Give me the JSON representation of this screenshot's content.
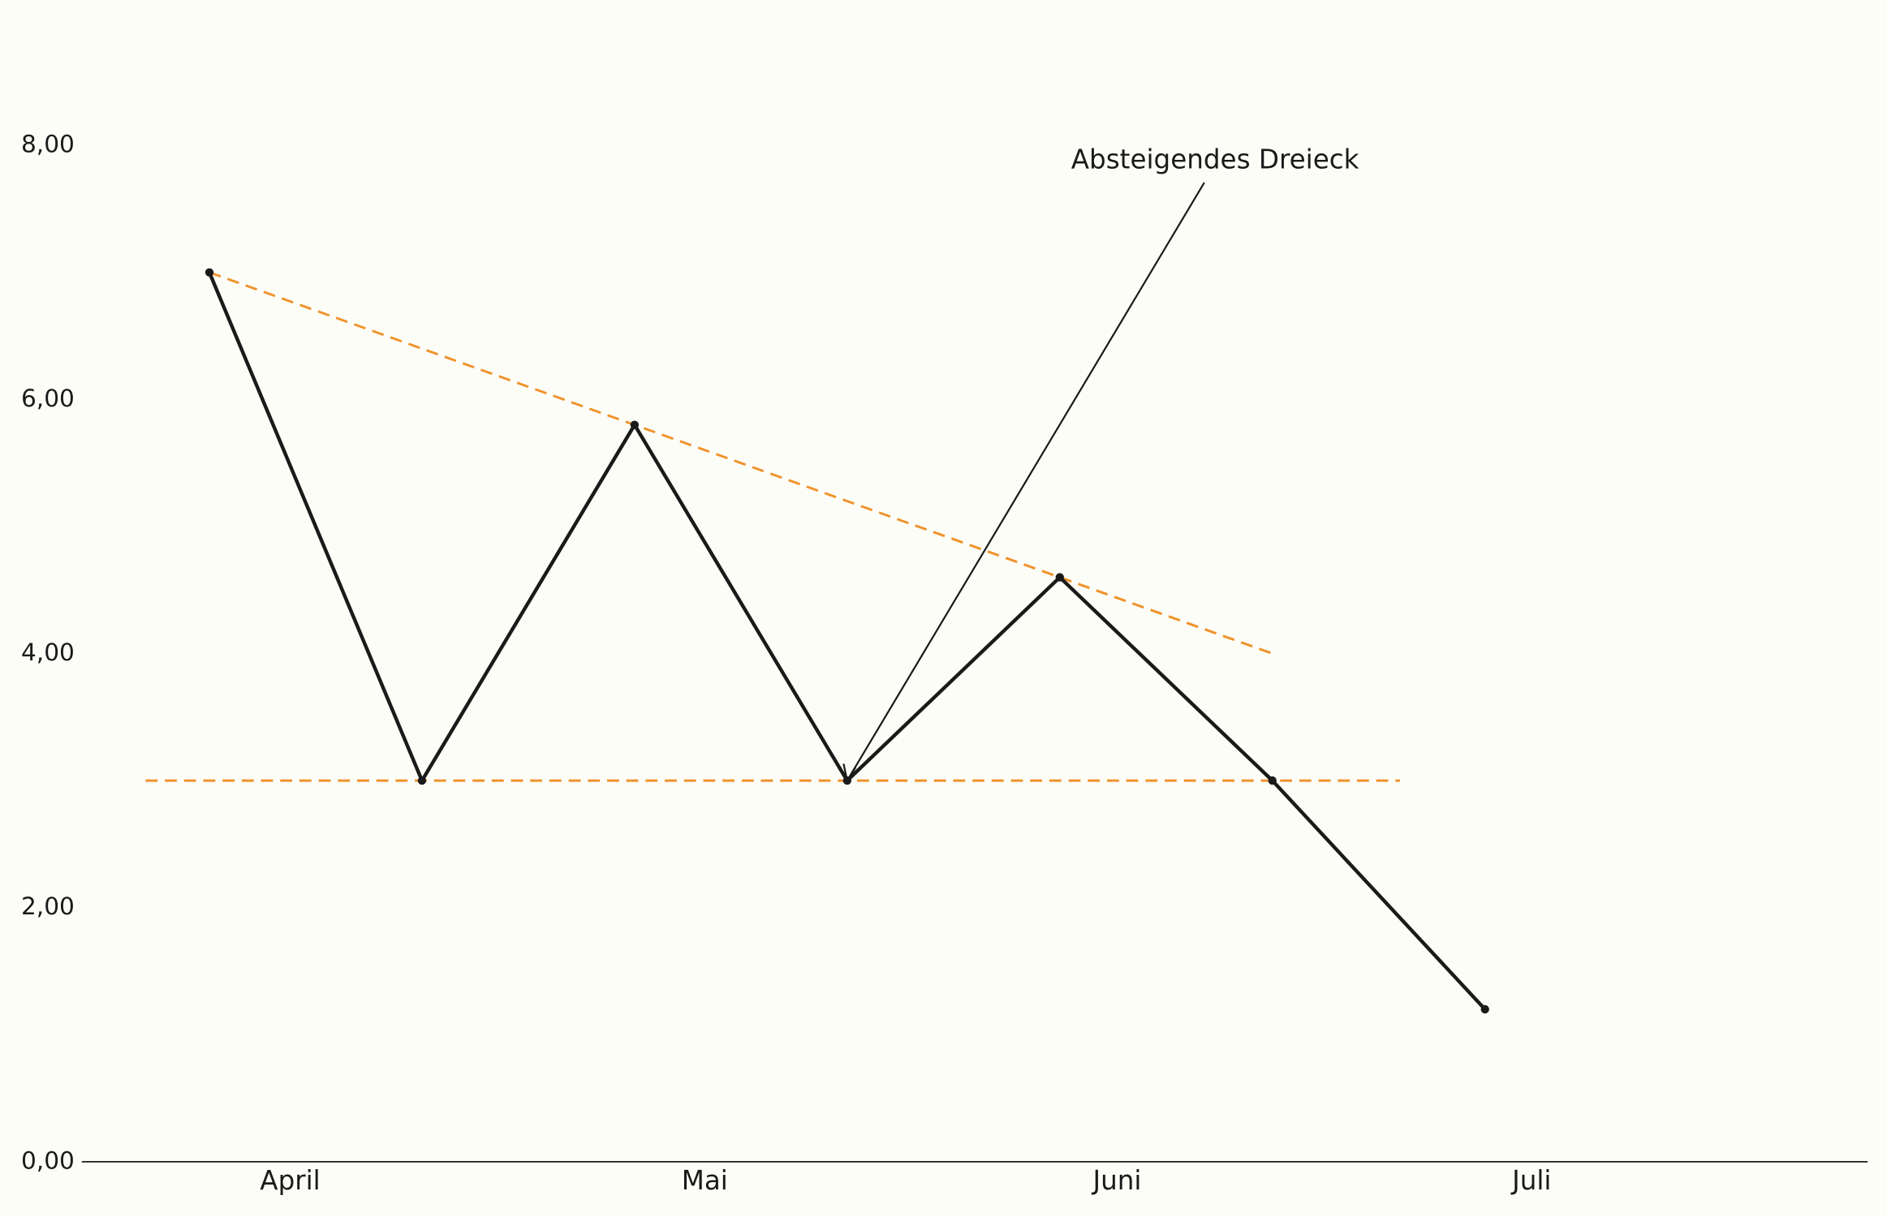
{
  "chart_data": {
    "type": "line",
    "series": [
      {
        "x": [
          0,
          1,
          2,
          3,
          4,
          5,
          6
        ],
        "values": [
          7,
          3,
          5.8,
          3,
          4.6,
          3,
          1.2
        ],
        "color": "#1a1a1a",
        "markers": true,
        "dashed": false
      },
      {
        "x": [
          0,
          5
        ],
        "values": [
          7,
          4
        ],
        "color": "#f0932b",
        "markers": false,
        "dashed": true
      },
      {
        "x": [
          -0.3,
          5.6
        ],
        "values": [
          3,
          3
        ],
        "color": "#f0932b",
        "markers": false,
        "dashed": true
      }
    ],
    "xlim": [
      -0.6,
      7.8
    ],
    "xticks": [
      {
        "value": 0.38,
        "label": "April"
      },
      {
        "value": 2.33,
        "label": "Mai"
      },
      {
        "value": 4.27,
        "label": "Juni"
      },
      {
        "value": 6.22,
        "label": "Juli"
      }
    ],
    "ylim": [
      0,
      8
    ],
    "yticks": [
      {
        "value": 0,
        "label": "0,00"
      },
      {
        "value": 2,
        "label": "2,00"
      },
      {
        "value": 4,
        "label": "4,00"
      },
      {
        "value": 6,
        "label": "6,00"
      },
      {
        "value": 8,
        "label": "8,00"
      }
    ],
    "annotation": {
      "text": "Absteigendes Dreieck",
      "xy": [
        3,
        3
      ]
    }
  }
}
